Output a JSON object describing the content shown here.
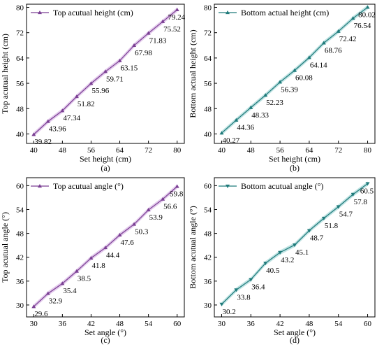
{
  "chart_data": [
    {
      "type": "line",
      "panel_label": "(a)",
      "xlabel": "Set height (cm)",
      "ylabel": "Top acutual height (cm)",
      "xlim": [
        38,
        82
      ],
      "ylim": [
        37,
        81
      ],
      "xticks": [
        "40",
        "48",
        "56",
        "64",
        "72",
        "80"
      ],
      "yticks": [
        "40",
        "48",
        "56",
        "64",
        "72",
        "80"
      ],
      "legend_position": "top-left",
      "grid": false,
      "series": [
        {
          "name": "Top acutual height (cm)",
          "color": "#7a3f93",
          "band_color": "#d9b8e6",
          "marker": "triangle-up",
          "x": [
            40,
            44,
            48,
            52,
            56,
            60,
            64,
            68,
            72,
            76,
            80
          ],
          "y": [
            39.82,
            43.96,
            47.34,
            51.82,
            55.96,
            59.71,
            63.15,
            67.98,
            71.83,
            75.52,
            79.24
          ],
          "labels": [
            "39.82",
            "43.96",
            "47.34",
            "51.82",
            "55.96",
            "59.71",
            "63.15",
            "67.98",
            "71.83",
            "75.52",
            "79.24"
          ]
        }
      ]
    },
    {
      "type": "line",
      "panel_label": "(b)",
      "xlabel": "Set height (cm)",
      "ylabel": "Bottom actual height (cm)",
      "xlim": [
        38,
        82
      ],
      "ylim": [
        37,
        81
      ],
      "xticks": [
        "40",
        "48",
        "56",
        "64",
        "72",
        "80"
      ],
      "yticks": [
        "40",
        "48",
        "56",
        "64",
        "72",
        "80"
      ],
      "legend_position": "top-left",
      "grid": false,
      "series": [
        {
          "name": "Bottom actual height (cm)",
          "color": "#1f7a7a",
          "band_color": "#aadada",
          "marker": "triangle-up",
          "x": [
            40,
            44,
            48,
            52,
            56,
            60,
            64,
            68,
            72,
            76,
            80
          ],
          "y": [
            40.27,
            44.36,
            48.33,
            52.23,
            56.39,
            60.08,
            64.14,
            68.76,
            72.42,
            76.54,
            80.02
          ],
          "labels": [
            "40.27",
            "44.36",
            "48.33",
            "52.23",
            "56.39",
            "60.08",
            "64.14",
            "68.76",
            "72.42",
            "76.54",
            "80.02"
          ]
        }
      ]
    },
    {
      "type": "line",
      "panel_label": "(c)",
      "xlabel": "Set angle (°)",
      "ylabel": "Top acutual angle (°)",
      "xlim": [
        28.5,
        61.5
      ],
      "ylim": [
        27,
        62
      ],
      "xticks": [
        "30",
        "36",
        "42",
        "48",
        "54",
        "60"
      ],
      "yticks": [
        "30",
        "36",
        "42",
        "48",
        "54",
        "60"
      ],
      "legend_position": "top-left",
      "grid": false,
      "series": [
        {
          "name": "Top acutual angle (°)",
          "color": "#7a3f93",
          "band_color": "#d9b8e6",
          "marker": "triangle-up",
          "x": [
            30,
            33,
            36,
            39,
            42,
            45,
            48,
            51,
            54,
            57,
            60
          ],
          "y": [
            29.6,
            32.9,
            35.4,
            38.5,
            41.8,
            44.4,
            47.6,
            50.3,
            53.9,
            56.6,
            59.8
          ],
          "labels": [
            "29.6",
            "32.9",
            "35.4",
            "38.5",
            "41.8",
            "44.4",
            "47.6",
            "50.3",
            "53.9",
            "56.6",
            "59.8"
          ]
        }
      ]
    },
    {
      "type": "line",
      "panel_label": "(d)",
      "xlabel": "Set angle (°)",
      "ylabel": "Bottom acutual angle (°)",
      "xlim": [
        28.5,
        61.5
      ],
      "ylim": [
        27,
        62
      ],
      "xticks": [
        "30",
        "36",
        "42",
        "48",
        "54",
        "60"
      ],
      "yticks": [
        "30",
        "36",
        "42",
        "48",
        "54",
        "60"
      ],
      "legend_position": "top-left",
      "grid": false,
      "series": [
        {
          "name": "Bottom acutual angle (°)",
          "color": "#1f7a7a",
          "band_color": "#aadada",
          "marker": "triangle-down",
          "x": [
            30,
            33,
            36,
            39,
            42,
            45,
            48,
            51,
            54,
            57,
            60
          ],
          "y": [
            30.2,
            33.8,
            36.4,
            40.5,
            43.2,
            45.1,
            48.7,
            51.8,
            54.7,
            57.8,
            60.5
          ],
          "labels": [
            "30.2",
            "33.8",
            "36.4",
            "40.5",
            "43.2",
            "45.1",
            "48.7",
            "51.8",
            "54.7",
            "57.8",
            "60.5"
          ]
        }
      ]
    }
  ]
}
